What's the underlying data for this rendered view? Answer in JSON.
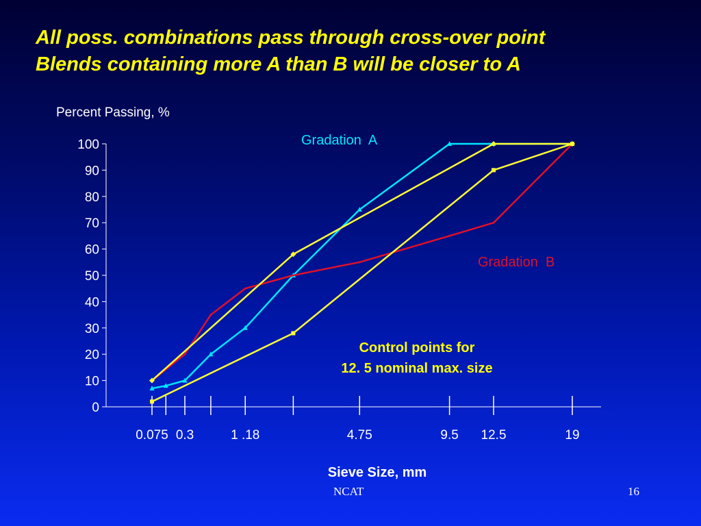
{
  "slide": {
    "title_line1": "All poss. combinations pass through cross-over point",
    "title_line2": "Blends containing more A than B will be closer to A",
    "footer_left": "NCAT",
    "page_number": "16"
  },
  "colors": {
    "title": "#ffff00",
    "gradation_a": "#00e5ff",
    "gradation_b": "#e0102a",
    "control": "#ffff33",
    "axis": "#ffffff",
    "note": "#ffff00"
  },
  "chart_data": {
    "type": "line",
    "ylabel": "Percent Passing, %",
    "xlabel": "Sieve Size, mm",
    "ylim": [
      0,
      100
    ],
    "yticks": [
      0,
      10,
      20,
      30,
      40,
      50,
      60,
      70,
      80,
      90,
      100
    ],
    "x_scale": "sieve size (0.45 power)",
    "xtick_labels": [
      "0.075",
      "0.3",
      "1 .18",
      "4.75",
      "9.5",
      "12.5",
      "19"
    ],
    "sieve_sizes": [
      0.075,
      0.15,
      0.3,
      0.6,
      1.18,
      2.36,
      4.75,
      9.5,
      12.5,
      19
    ],
    "series": [
      {
        "name": "Gradation  A",
        "color": "#00e5ff",
        "marker": "triangle",
        "x": [
          0.075,
          0.15,
          0.3,
          0.6,
          1.18,
          2.36,
          4.75,
          9.5,
          12.5,
          19
        ],
        "y": [
          7,
          8,
          10,
          20,
          30,
          50,
          75,
          100,
          100,
          100
        ]
      },
      {
        "name": "Gradation  B",
        "color": "#e0102a",
        "marker": "none",
        "x": [
          0.075,
          0.3,
          0.6,
          1.18,
          2.36,
          4.75,
          9.5,
          12.5,
          19
        ],
        "y": [
          10,
          20,
          35,
          45,
          50,
          55,
          65,
          70,
          100
        ]
      },
      {
        "name": "",
        "role": "control points upper",
        "color": "#ffff33",
        "marker": "diamond",
        "x": [
          0.075,
          2.36,
          12.5,
          19
        ],
        "y": [
          10,
          58,
          100,
          100
        ]
      },
      {
        "name": "",
        "role": "control points lower",
        "color": "#ffff33",
        "marker": "square",
        "x": [
          0.075,
          2.36,
          12.5,
          19
        ],
        "y": [
          2,
          28,
          90,
          100
        ]
      }
    ],
    "annotations": [
      {
        "text": "Control points for",
        "color": "#ffff00"
      },
      {
        "text": "12. 5 nominal max. size",
        "color": "#ffff00"
      }
    ],
    "grid": false,
    "legend": "none"
  }
}
